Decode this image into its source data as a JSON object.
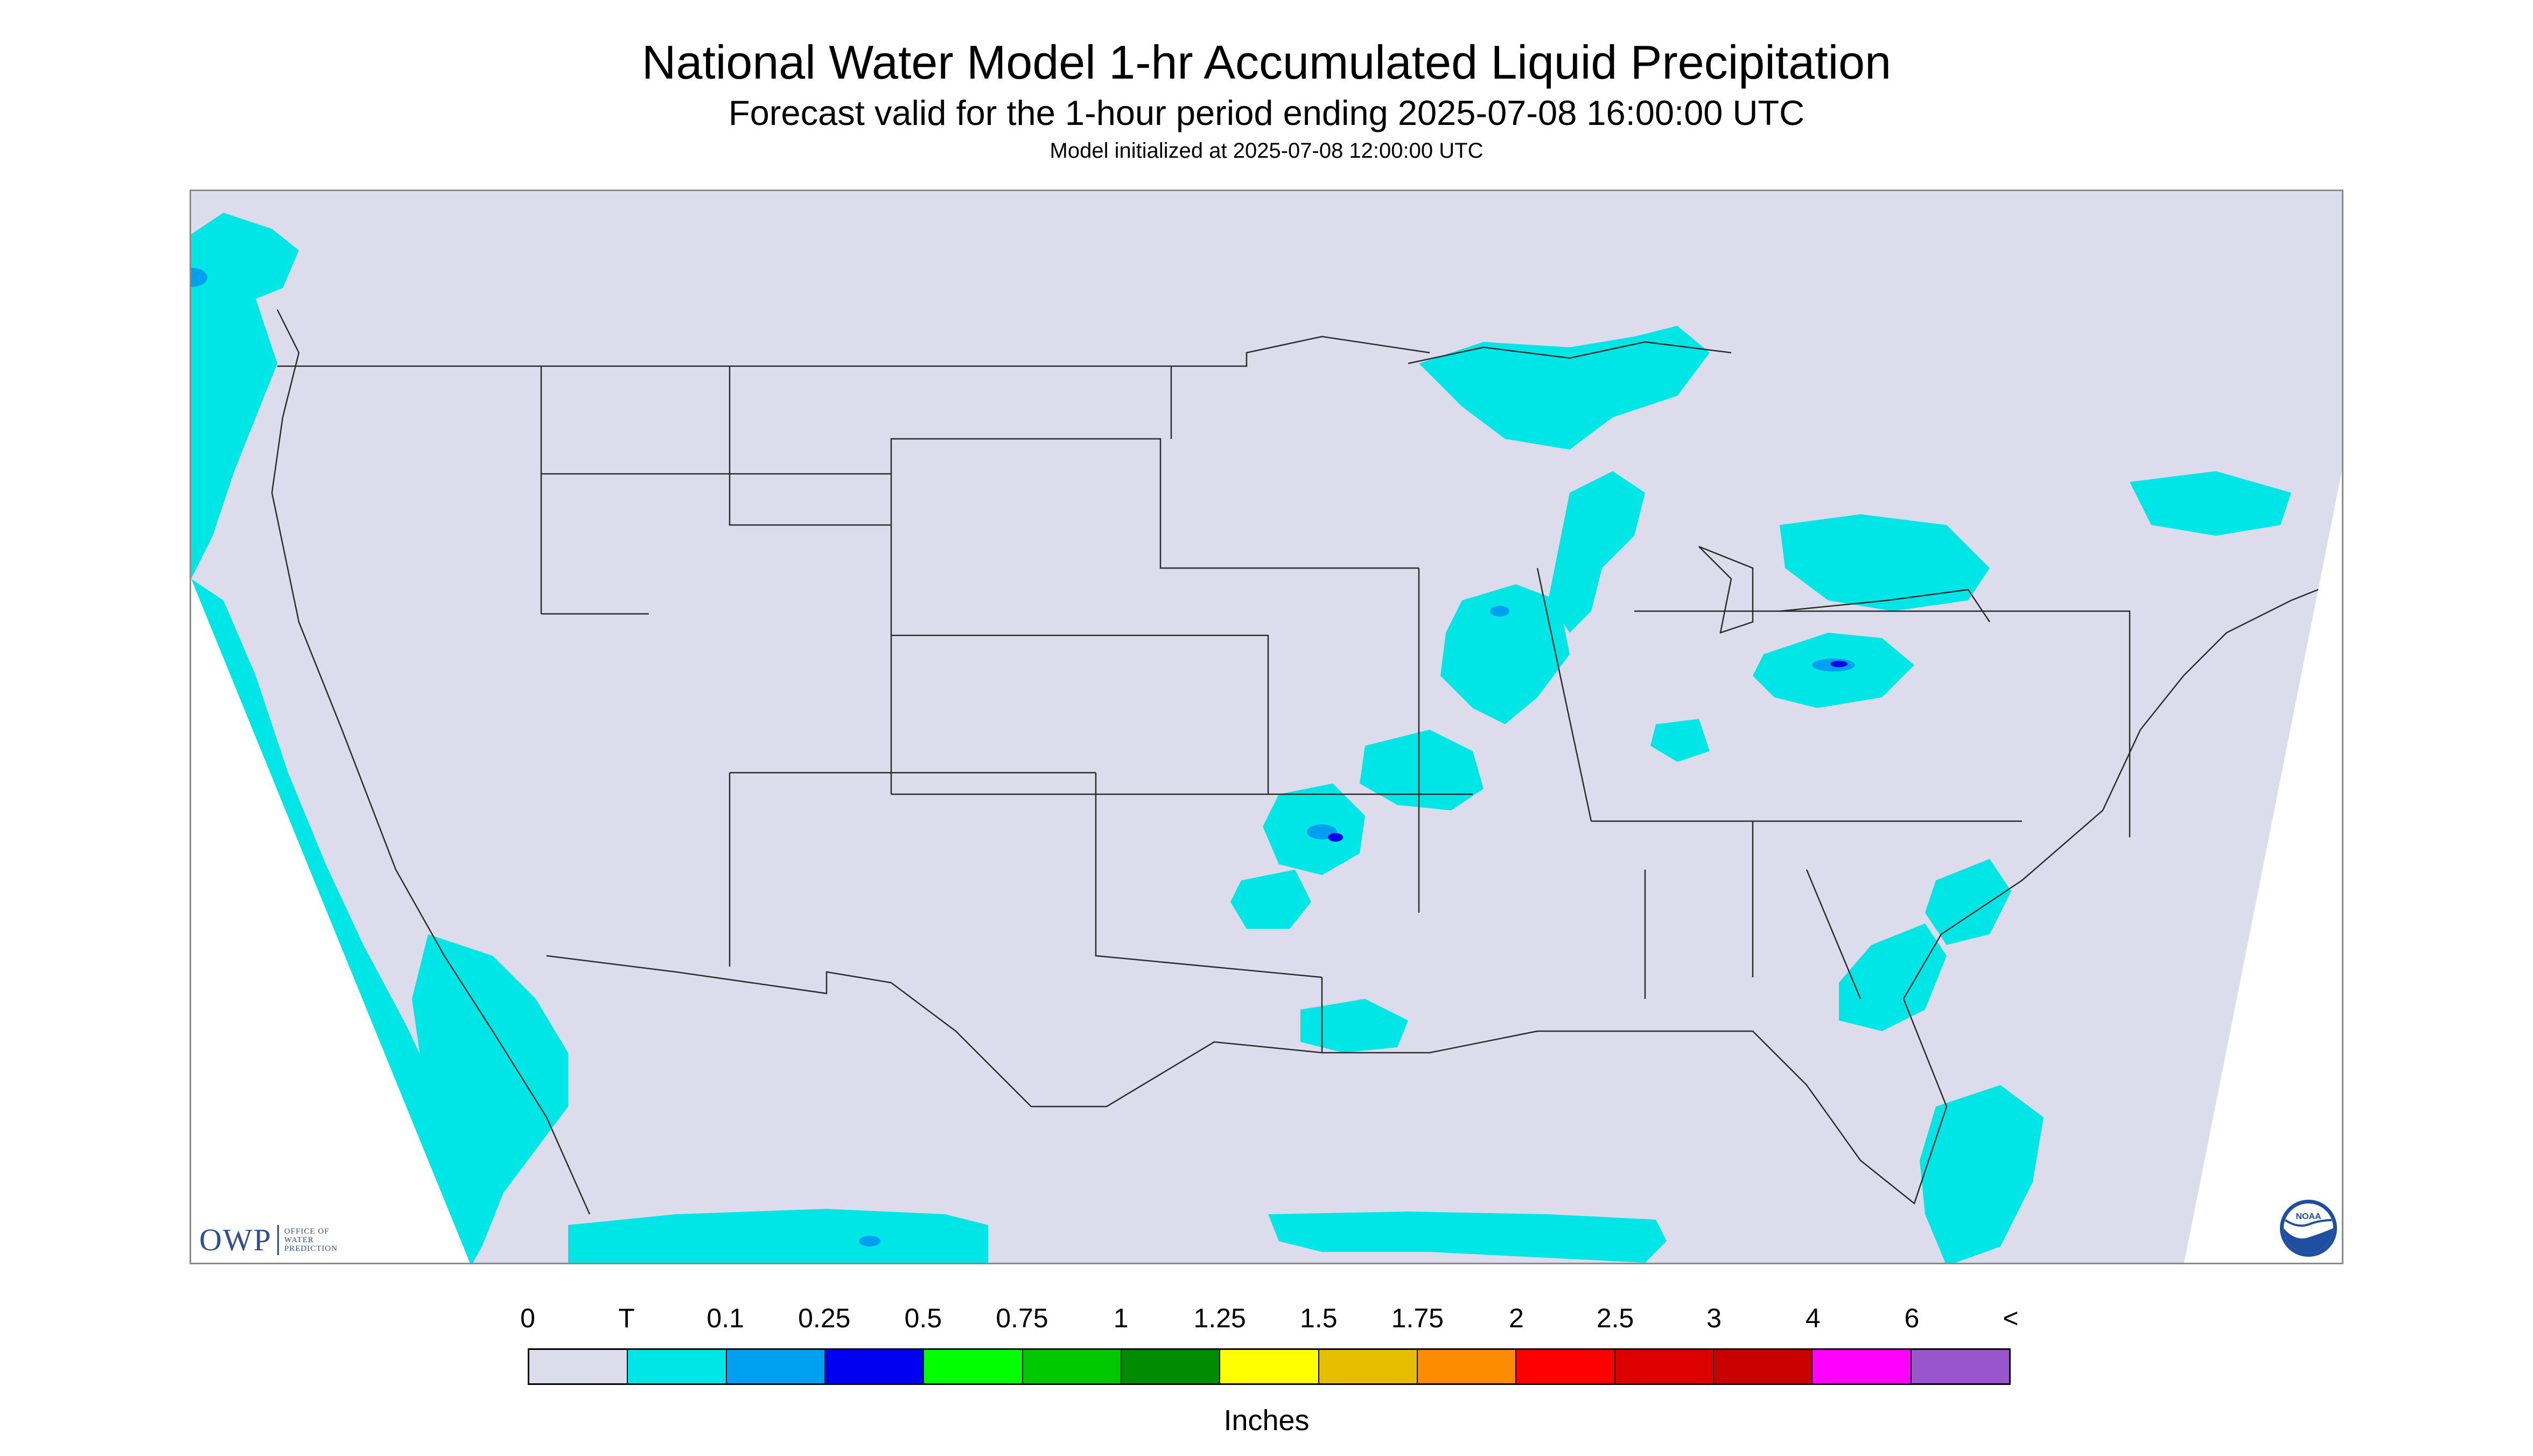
{
  "title": "National Water Model 1-hr Accumulated Liquid Precipitation",
  "subtitle": "Forecast valid for the 1-hour period ending 2025-07-08 16:00:00 UTC",
  "init_line": "Model initialized at 2025-07-08 12:00:00 UTC",
  "units_label": "Inches",
  "logos": {
    "owp_main": "OWP",
    "owp_sub": [
      "OFFICE OF",
      "WATER",
      "PREDICTION"
    ],
    "noaa": "NOAA"
  },
  "colors": {
    "map_background": "#dcdcec",
    "outside_domain": "#ffffff",
    "boundary_lines": "#2b2b2b",
    "trace_cyan": "#00e6e6",
    "light_blue": "#00a0f0",
    "blue": "#0000f0"
  },
  "legend": {
    "labels": [
      "0",
      "T",
      "0.1",
      "0.25",
      "0.5",
      "0.75",
      "1",
      "1.25",
      "1.5",
      "1.75",
      "2",
      "2.5",
      "3",
      "4",
      "6",
      "<"
    ],
    "colors": [
      "#dcdcec",
      "#00e6e6",
      "#00a0f0",
      "#0000f0",
      "#00ff00",
      "#00c800",
      "#008c00",
      "#ffff00",
      "#e6be00",
      "#ff8c00",
      "#ff0000",
      "#dc0000",
      "#c80000",
      "#ff00ff",
      "#9955cc"
    ]
  },
  "precip_areas": [
    "Pacific Northwest coast and offshore",
    "California and Baja offshore",
    "Eastern Pacific south of Mexico",
    "Lake Superior region",
    "Lower Michigan and Wisconsin",
    "Illinois and Iowa",
    "Oklahoma and Arkansas",
    "North Texas",
    "Pennsylvania and New York",
    "Southern Ontario",
    "Kentucky",
    "Louisiana coast",
    "Atlantic offshore of the Carolinas",
    "Atlantic near the Bahamas",
    "Gulf of Mexico south"
  ]
}
